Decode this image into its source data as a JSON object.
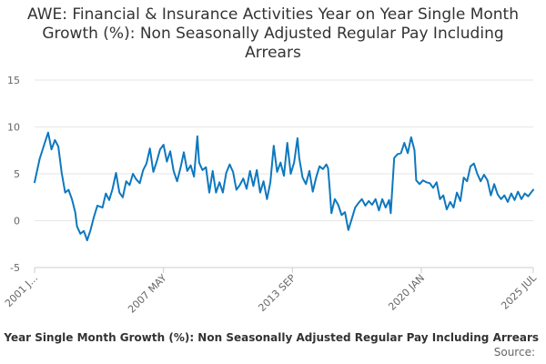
{
  "title": "AWE: Financial & Insurance Activities Year on Year Single Month Growth (%): Non Seasonally Adjusted Regular Pay Including Arrears",
  "legend_text": "AWE: Financial & Insurance Activities Year on Year Single Month Growth (%): Non Seasonally Adjusted Regular Pay Including Arrears",
  "source_label": "Source:",
  "colors": {
    "series": "#0d78bf",
    "grid": "#e6e6e6",
    "axis": "#cccccc",
    "text": "#666666"
  },
  "chart_data": {
    "type": "line",
    "title": "AWE: Financial & Insurance Activities Year on Year Single Month Growth (%): Non Seasonally Adjusted Regular Pay Including Arrears",
    "xlabel": "",
    "ylabel": "",
    "ylim": [
      -5,
      15
    ],
    "yticks": [
      -5,
      0,
      5,
      10,
      15
    ],
    "grid": true,
    "x_range": [
      "2001-01",
      "2025-07"
    ],
    "xtick_labels": [
      {
        "date": "2001-01",
        "label": "2001 J..."
      },
      {
        "date": "2007-05",
        "label": "2007 MAY"
      },
      {
        "date": "2013-09",
        "label": "2013 SEP"
      },
      {
        "date": "2020-01",
        "label": "2020 JAN"
      },
      {
        "date": "2025-07",
        "label": "2025 JUL"
      }
    ],
    "series": [
      {
        "name": "AWE: Financial & Insurance Activities Year on Year Single Month Growth (%): Non Seasonally Adjusted Regular Pay Including Arrears",
        "points": [
          [
            "2001-01",
            4.1
          ],
          [
            "2001-04",
            6.6
          ],
          [
            "2001-07",
            8.3
          ],
          [
            "2001-09",
            9.4
          ],
          [
            "2001-11",
            7.6
          ],
          [
            "2002-01",
            8.6
          ],
          [
            "2002-03",
            7.9
          ],
          [
            "2002-05",
            5.1
          ],
          [
            "2002-07",
            3.0
          ],
          [
            "2002-09",
            3.3
          ],
          [
            "2002-11",
            2.3
          ],
          [
            "2003-01",
            0.9
          ],
          [
            "2003-02",
            -0.6
          ],
          [
            "2003-04",
            -1.4
          ],
          [
            "2003-06",
            -1.1
          ],
          [
            "2003-08",
            -2.1
          ],
          [
            "2003-10",
            -1.0
          ],
          [
            "2003-12",
            0.4
          ],
          [
            "2004-02",
            1.6
          ],
          [
            "2004-05",
            1.4
          ],
          [
            "2004-07",
            2.9
          ],
          [
            "2004-09",
            2.2
          ],
          [
            "2004-11",
            3.4
          ],
          [
            "2005-01",
            5.1
          ],
          [
            "2005-03",
            3.0
          ],
          [
            "2005-05",
            2.5
          ],
          [
            "2005-07",
            4.2
          ],
          [
            "2005-09",
            3.8
          ],
          [
            "2005-11",
            5.0
          ],
          [
            "2006-01",
            4.4
          ],
          [
            "2006-03",
            4.0
          ],
          [
            "2006-05",
            5.4
          ],
          [
            "2006-07",
            6.1
          ],
          [
            "2006-09",
            7.7
          ],
          [
            "2006-11",
            5.2
          ],
          [
            "2007-01",
            6.3
          ],
          [
            "2007-03",
            7.6
          ],
          [
            "2007-05",
            8.1
          ],
          [
            "2007-07",
            6.3
          ],
          [
            "2007-09",
            7.4
          ],
          [
            "2007-11",
            5.3
          ],
          [
            "2008-01",
            4.2
          ],
          [
            "2008-03",
            5.6
          ],
          [
            "2008-05",
            7.3
          ],
          [
            "2008-07",
            5.3
          ],
          [
            "2008-09",
            5.9
          ],
          [
            "2008-11",
            4.7
          ],
          [
            "2009-01",
            9.0
          ],
          [
            "2009-02",
            6.2
          ],
          [
            "2009-04",
            5.4
          ],
          [
            "2009-06",
            5.7
          ],
          [
            "2009-08",
            3.0
          ],
          [
            "2009-10",
            5.3
          ],
          [
            "2009-12",
            3.0
          ],
          [
            "2010-02",
            4.1
          ],
          [
            "2010-04",
            3.0
          ],
          [
            "2010-06",
            5.1
          ],
          [
            "2010-08",
            6.0
          ],
          [
            "2010-10",
            5.2
          ],
          [
            "2010-12",
            3.3
          ],
          [
            "2011-02",
            3.8
          ],
          [
            "2011-04",
            4.5
          ],
          [
            "2011-06",
            3.4
          ],
          [
            "2011-08",
            5.3
          ],
          [
            "2011-10",
            3.7
          ],
          [
            "2011-12",
            5.4
          ],
          [
            "2012-02",
            3.0
          ],
          [
            "2012-04",
            4.2
          ],
          [
            "2012-06",
            2.3
          ],
          [
            "2012-08",
            4.1
          ],
          [
            "2012-10",
            8.0
          ],
          [
            "2012-12",
            5.2
          ],
          [
            "2013-02",
            6.2
          ],
          [
            "2013-04",
            4.8
          ],
          [
            "2013-06",
            8.3
          ],
          [
            "2013-08",
            5.0
          ],
          [
            "2013-10",
            6.2
          ],
          [
            "2013-12",
            8.8
          ],
          [
            "2014-01",
            6.7
          ],
          [
            "2014-03",
            4.6
          ],
          [
            "2014-05",
            3.9
          ],
          [
            "2014-07",
            5.3
          ],
          [
            "2014-09",
            3.1
          ],
          [
            "2014-11",
            4.6
          ],
          [
            "2015-01",
            5.8
          ],
          [
            "2015-03",
            5.5
          ],
          [
            "2015-05",
            6.0
          ],
          [
            "2015-06",
            5.6
          ],
          [
            "2015-07",
            3.4
          ],
          [
            "2015-08",
            0.8
          ],
          [
            "2015-10",
            2.3
          ],
          [
            "2015-12",
            1.7
          ],
          [
            "2016-02",
            0.6
          ],
          [
            "2016-04",
            0.9
          ],
          [
            "2016-06",
            -1.0
          ],
          [
            "2016-08",
            0.2
          ],
          [
            "2016-10",
            1.4
          ],
          [
            "2016-12",
            1.9
          ],
          [
            "2017-02",
            2.3
          ],
          [
            "2017-04",
            1.6
          ],
          [
            "2017-06",
            2.1
          ],
          [
            "2017-08",
            1.7
          ],
          [
            "2017-10",
            2.3
          ],
          [
            "2017-12",
            1.1
          ],
          [
            "2018-02",
            2.3
          ],
          [
            "2018-04",
            1.4
          ],
          [
            "2018-06",
            2.2
          ],
          [
            "2018-07",
            0.8
          ],
          [
            "2018-09",
            6.7
          ],
          [
            "2018-11",
            7.1
          ],
          [
            "2019-01",
            7.2
          ],
          [
            "2019-03",
            8.3
          ],
          [
            "2019-05",
            7.2
          ],
          [
            "2019-07",
            8.9
          ],
          [
            "2019-09",
            7.5
          ],
          [
            "2019-10",
            4.3
          ],
          [
            "2019-12",
            3.9
          ],
          [
            "2020-02",
            4.3
          ],
          [
            "2020-04",
            4.1
          ],
          [
            "2020-06",
            4.0
          ],
          [
            "2020-08",
            3.5
          ],
          [
            "2020-10",
            4.1
          ],
          [
            "2020-12",
            2.3
          ],
          [
            "2021-02",
            2.7
          ],
          [
            "2021-04",
            1.2
          ],
          [
            "2021-06",
            2.0
          ],
          [
            "2021-08",
            1.4
          ],
          [
            "2021-10",
            3.0
          ],
          [
            "2021-12",
            2.1
          ],
          [
            "2022-02",
            4.6
          ],
          [
            "2022-04",
            4.2
          ],
          [
            "2022-06",
            5.8
          ],
          [
            "2022-08",
            6.1
          ],
          [
            "2022-10",
            5.0
          ],
          [
            "2022-12",
            4.2
          ],
          [
            "2023-02",
            4.9
          ],
          [
            "2023-04",
            4.3
          ],
          [
            "2023-06",
            2.7
          ],
          [
            "2023-08",
            3.9
          ],
          [
            "2023-10",
            2.8
          ],
          [
            "2023-12",
            2.3
          ],
          [
            "2024-02",
            2.7
          ],
          [
            "2024-04",
            2.0
          ],
          [
            "2024-06",
            2.9
          ],
          [
            "2024-08",
            2.2
          ],
          [
            "2024-10",
            3.1
          ],
          [
            "2024-12",
            2.3
          ],
          [
            "2025-02",
            2.9
          ],
          [
            "2025-04",
            2.6
          ],
          [
            "2025-07",
            3.3
          ]
        ]
      }
    ]
  }
}
